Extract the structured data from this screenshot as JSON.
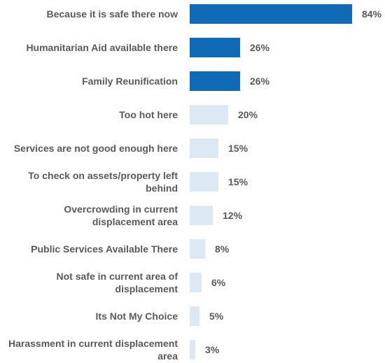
{
  "chart_data": {
    "type": "bar",
    "orientation": "horizontal",
    "categories": [
      "Because it is safe there now",
      "Humanitarian Aid available there",
      "Family Reunification",
      "Too hot here",
      "Services are not good enough here",
      "To check on assets/property left behind",
      "Overcrowding in current displacement area",
      "Public Services Available There",
      "Not safe in current area of displacement",
      "Its Not My Choice",
      "Harassment in current displacement area"
    ],
    "values": [
      84,
      26,
      26,
      20,
      15,
      15,
      12,
      8,
      6,
      5,
      3
    ],
    "value_labels": [
      "84%",
      "26%",
      "26%",
      "20%",
      "15%",
      "15%",
      "12%",
      "8%",
      "6%",
      "5%",
      "3%"
    ],
    "highlighted": [
      true,
      true,
      true,
      false,
      false,
      false,
      false,
      false,
      false,
      false,
      false
    ],
    "xlim": [
      0,
      84
    ],
    "grid": false,
    "title": "",
    "xlabel": "",
    "ylabel": ""
  },
  "colors": {
    "highlight": "#0F6BB8",
    "muted": "#DDE8F5",
    "text": "#595959"
  }
}
